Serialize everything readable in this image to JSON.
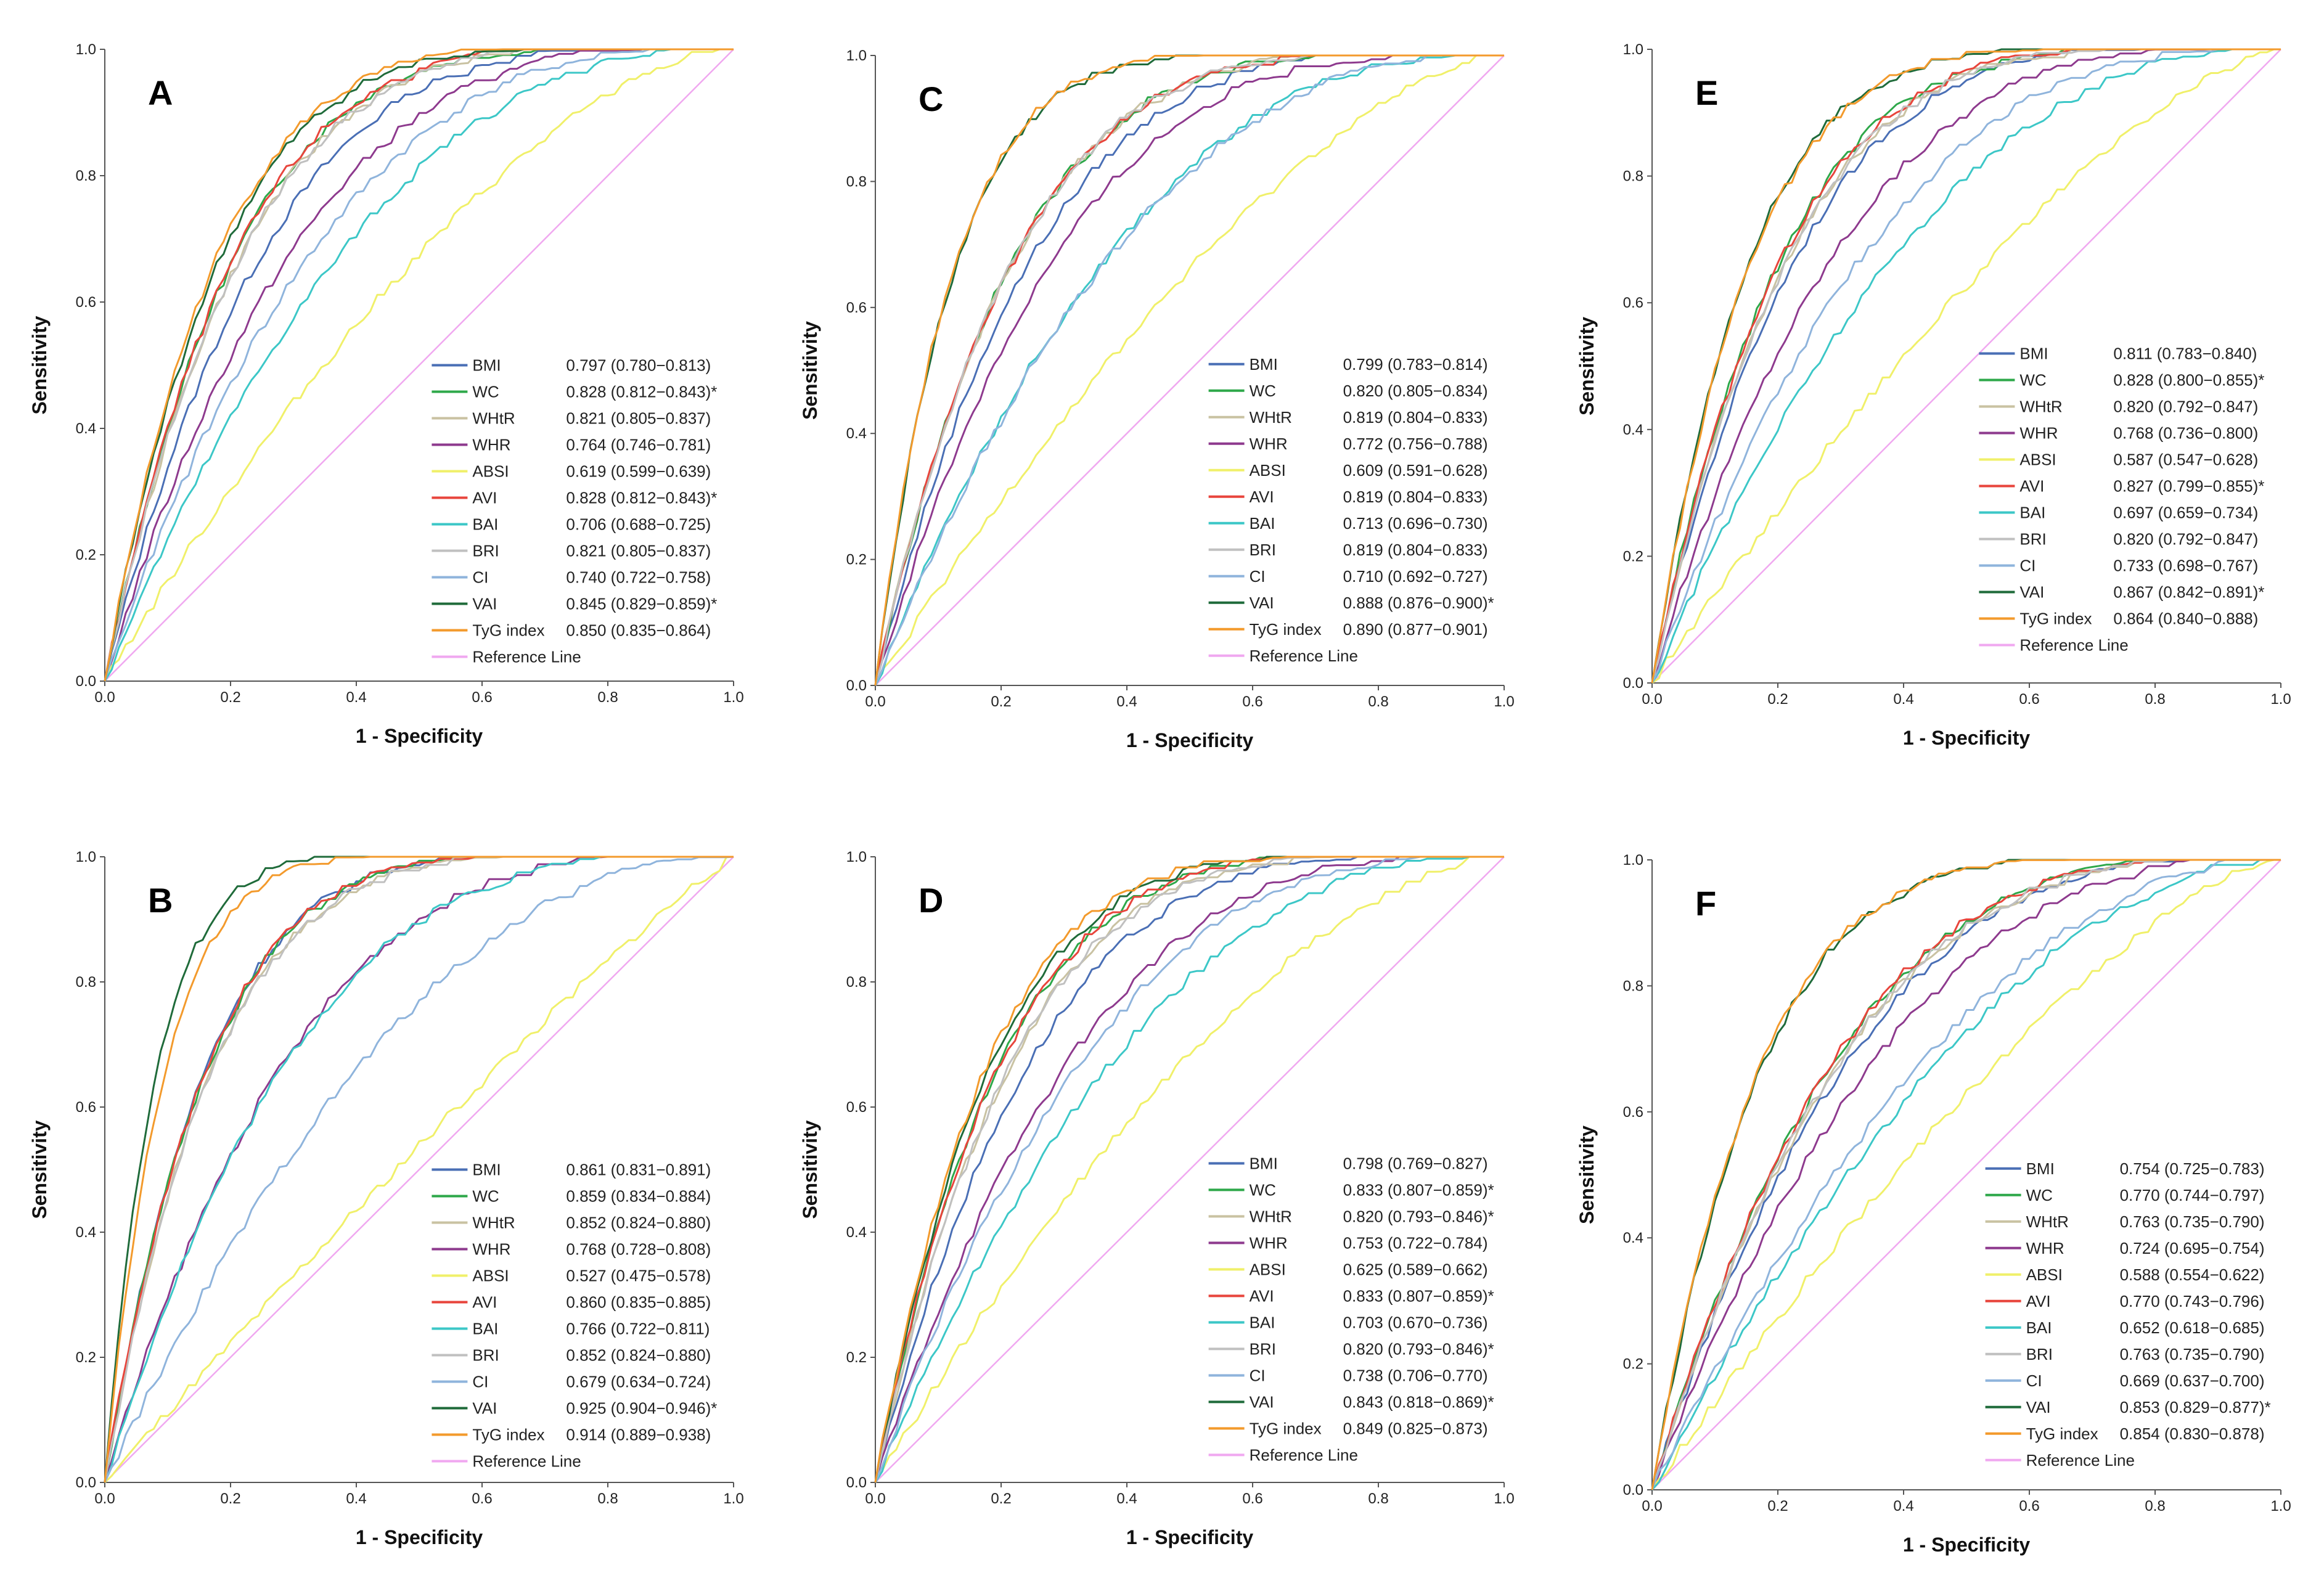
{
  "chart_data": [
    {
      "type": "line",
      "panel": "A",
      "xlabel": "1 - Specificity",
      "ylabel": "Sensitivity",
      "xlim": [
        0,
        1
      ],
      "ylim": [
        0,
        1
      ],
      "xticks": [
        "0.0",
        "0.2",
        "0.4",
        "0.6",
        "0.8",
        "1.0"
      ],
      "yticks": [
        "0.0",
        "0.2",
        "0.4",
        "0.6",
        "0.8",
        "1.0"
      ],
      "series": [
        {
          "name": "BMI",
          "color": "#4a6fb5",
          "auc": "0.797 (0.780−0.813)"
        },
        {
          "name": "WC",
          "color": "#2ea84a",
          "auc": "0.828 (0.812−0.843)*"
        },
        {
          "name": "WHtR",
          "color": "#c9c2a2",
          "auc": "0.821 (0.805−0.837)"
        },
        {
          "name": "WHR",
          "color": "#8e3a8e",
          "auc": "0.764 (0.746−0.781)"
        },
        {
          "name": "ABSI",
          "color": "#f0f06a",
          "auc": "0.619 (0.599−0.639)"
        },
        {
          "name": "AVI",
          "color": "#e8453c",
          "auc": "0.828 (0.812−0.843)*"
        },
        {
          "name": "BAI",
          "color": "#3cc7c7",
          "auc": "0.706 (0.688−0.725)"
        },
        {
          "name": "BRI",
          "color": "#c0c0c0",
          "auc": "0.821 (0.805−0.837)"
        },
        {
          "name": "CI",
          "color": "#8fb4dc",
          "auc": "0.740 (0.722−0.758)"
        },
        {
          "name": "VAI",
          "color": "#1f6b3a",
          "auc": "0.845 (0.829−0.859)*"
        },
        {
          "name": "TyG index",
          "color": "#f39a2c",
          "auc": "0.850 (0.835−0.864)"
        }
      ],
      "reference": {
        "name": "Reference Line",
        "color": "#f0a8f0"
      }
    },
    {
      "type": "line",
      "panel": "B",
      "xlabel": "1 - Specificity",
      "ylabel": "Sensitivity",
      "xlim": [
        0,
        1
      ],
      "ylim": [
        0,
        1
      ],
      "xticks": [
        "0.0",
        "0.2",
        "0.4",
        "0.6",
        "0.8",
        "1.0"
      ],
      "yticks": [
        "0.0",
        "0.2",
        "0.4",
        "0.6",
        "0.8",
        "1.0"
      ],
      "series": [
        {
          "name": "BMI",
          "color": "#4a6fb5",
          "auc": "0.861 (0.831−0.891)"
        },
        {
          "name": "WC",
          "color": "#2ea84a",
          "auc": "0.859 (0.834−0.884)"
        },
        {
          "name": "WHtR",
          "color": "#c9c2a2",
          "auc": "0.852 (0.824−0.880)"
        },
        {
          "name": "WHR",
          "color": "#8e3a8e",
          "auc": "0.768 (0.728−0.808)"
        },
        {
          "name": "ABSI",
          "color": "#f0f06a",
          "auc": "0.527 (0.475−0.578)"
        },
        {
          "name": "AVI",
          "color": "#e8453c",
          "auc": "0.860 (0.835−0.885)"
        },
        {
          "name": "BAI",
          "color": "#3cc7c7",
          "auc": "0.766 (0.722−0.811)"
        },
        {
          "name": "BRI",
          "color": "#c0c0c0",
          "auc": "0.852 (0.824−0.880)"
        },
        {
          "name": "CI",
          "color": "#8fb4dc",
          "auc": "0.679 (0.634−0.724)"
        },
        {
          "name": "VAI",
          "color": "#1f6b3a",
          "auc": "0.925 (0.904−0.946)*"
        },
        {
          "name": "TyG index",
          "color": "#f39a2c",
          "auc": "0.914 (0.889−0.938)"
        }
      ],
      "reference": {
        "name": "Reference Line",
        "color": "#f0a8f0"
      }
    },
    {
      "type": "line",
      "panel": "C",
      "xlabel": "1 - Specificity",
      "ylabel": "Sensitivity",
      "xlim": [
        0,
        1
      ],
      "ylim": [
        0,
        1
      ],
      "xticks": [
        "0.0",
        "0.2",
        "0.4",
        "0.6",
        "0.8",
        "1.0"
      ],
      "yticks": [
        "0.0",
        "0.2",
        "0.4",
        "0.6",
        "0.8",
        "1.0"
      ],
      "series": [
        {
          "name": "BMI",
          "color": "#4a6fb5",
          "auc": "0.799 (0.783−0.814)"
        },
        {
          "name": "WC",
          "color": "#2ea84a",
          "auc": "0.820 (0.805−0.834)"
        },
        {
          "name": "WHtR",
          "color": "#c9c2a2",
          "auc": "0.819 (0.804−0.833)"
        },
        {
          "name": "WHR",
          "color": "#8e3a8e",
          "auc": "0.772 (0.756−0.788)"
        },
        {
          "name": "ABSI",
          "color": "#f0f06a",
          "auc": "0.609 (0.591−0.628)"
        },
        {
          "name": "AVI",
          "color": "#e8453c",
          "auc": "0.819 (0.804−0.833)"
        },
        {
          "name": "BAI",
          "color": "#3cc7c7",
          "auc": "0.713 (0.696−0.730)"
        },
        {
          "name": "BRI",
          "color": "#c0c0c0",
          "auc": "0.819 (0.804−0.833)"
        },
        {
          "name": "CI",
          "color": "#8fb4dc",
          "auc": "0.710 (0.692−0.727)"
        },
        {
          "name": "VAI",
          "color": "#1f6b3a",
          "auc": "0.888 (0.876−0.900)*"
        },
        {
          "name": "TyG index",
          "color": "#f39a2c",
          "auc": "0.890 (0.877−0.901)"
        }
      ],
      "reference": {
        "name": "Reference Line",
        "color": "#f0a8f0"
      }
    },
    {
      "type": "line",
      "panel": "D",
      "xlabel": "1 - Specificity",
      "ylabel": "Sensitivity",
      "xlim": [
        0,
        1
      ],
      "ylim": [
        0,
        1
      ],
      "xticks": [
        "0.0",
        "0.2",
        "0.4",
        "0.6",
        "0.8",
        "1.0"
      ],
      "yticks": [
        "0.0",
        "0.2",
        "0.4",
        "0.6",
        "0.8",
        "1.0"
      ],
      "series": [
        {
          "name": "BMI",
          "color": "#4a6fb5",
          "auc": "0.798 (0.769−0.827)"
        },
        {
          "name": "WC",
          "color": "#2ea84a",
          "auc": "0.833 (0.807−0.859)*"
        },
        {
          "name": "WHtR",
          "color": "#c9c2a2",
          "auc": "0.820 (0.793−0.846)*"
        },
        {
          "name": "WHR",
          "color": "#8e3a8e",
          "auc": "0.753 (0.722−0.784)"
        },
        {
          "name": "ABSI",
          "color": "#f0f06a",
          "auc": "0.625 (0.589−0.662)"
        },
        {
          "name": "AVI",
          "color": "#e8453c",
          "auc": "0.833 (0.807−0.859)*"
        },
        {
          "name": "BAI",
          "color": "#3cc7c7",
          "auc": "0.703 (0.670−0.736)"
        },
        {
          "name": "BRI",
          "color": "#c0c0c0",
          "auc": "0.820 (0.793−0.846)*"
        },
        {
          "name": "CI",
          "color": "#8fb4dc",
          "auc": "0.738 (0.706−0.770)"
        },
        {
          "name": "VAI",
          "color": "#1f6b3a",
          "auc": "0.843 (0.818−0.869)*"
        },
        {
          "name": "TyG index",
          "color": "#f39a2c",
          "auc": "0.849 (0.825−0.873)"
        }
      ],
      "reference": {
        "name": "Reference Line",
        "color": "#f0a8f0"
      }
    },
    {
      "type": "line",
      "panel": "E",
      "xlabel": "1 - Specificity",
      "ylabel": "Sensitivity",
      "xlim": [
        0,
        1
      ],
      "ylim": [
        0,
        1
      ],
      "xticks": [
        "0.0",
        "0.2",
        "0.4",
        "0.6",
        "0.8",
        "1.0"
      ],
      "yticks": [
        "0.0",
        "0.2",
        "0.4",
        "0.6",
        "0.8",
        "1.0"
      ],
      "series": [
        {
          "name": "BMI",
          "color": "#4a6fb5",
          "auc": "0.811 (0.783−0.840)"
        },
        {
          "name": "WC",
          "color": "#2ea84a",
          "auc": "0.828 (0.800−0.855)*"
        },
        {
          "name": "WHtR",
          "color": "#c9c2a2",
          "auc": "0.820 (0.792−0.847)"
        },
        {
          "name": "WHR",
          "color": "#8e3a8e",
          "auc": "0.768 (0.736−0.800)"
        },
        {
          "name": "ABSI",
          "color": "#f0f06a",
          "auc": "0.587 (0.547−0.628)"
        },
        {
          "name": "AVI",
          "color": "#e8453c",
          "auc": "0.827 (0.799−0.855)*"
        },
        {
          "name": "BAI",
          "color": "#3cc7c7",
          "auc": "0.697 (0.659−0.734)"
        },
        {
          "name": "BRI",
          "color": "#c0c0c0",
          "auc": "0.820 (0.792−0.847)"
        },
        {
          "name": "CI",
          "color": "#8fb4dc",
          "auc": "0.733 (0.698−0.767)"
        },
        {
          "name": "VAI",
          "color": "#1f6b3a",
          "auc": "0.867 (0.842−0.891)*"
        },
        {
          "name": "TyG index",
          "color": "#f39a2c",
          "auc": "0.864 (0.840−0.888)"
        }
      ],
      "reference": {
        "name": "Reference Line",
        "color": "#f0a8f0"
      }
    },
    {
      "type": "line",
      "panel": "F",
      "xlabel": "1 - Specificity",
      "ylabel": "Sensitivity",
      "xlim": [
        0,
        1
      ],
      "ylim": [
        0,
        1
      ],
      "xticks": [
        "0.0",
        "0.2",
        "0.4",
        "0.6",
        "0.8",
        "1.0"
      ],
      "yticks": [
        "0.0",
        "0.2",
        "0.4",
        "0.6",
        "0.8",
        "1.0"
      ],
      "series": [
        {
          "name": "BMI",
          "color": "#4a6fb5",
          "auc": "0.754 (0.725−0.783)"
        },
        {
          "name": "WC",
          "color": "#2ea84a",
          "auc": "0.770 (0.744−0.797)"
        },
        {
          "name": "WHtR",
          "color": "#c9c2a2",
          "auc": "0.763 (0.735−0.790)"
        },
        {
          "name": "WHR",
          "color": "#8e3a8e",
          "auc": "0.724 (0.695−0.754)"
        },
        {
          "name": "ABSI",
          "color": "#f0f06a",
          "auc": "0.588 (0.554−0.622)"
        },
        {
          "name": "AVI",
          "color": "#e8453c",
          "auc": "0.770 (0.743−0.796)"
        },
        {
          "name": "BAI",
          "color": "#3cc7c7",
          "auc": "0.652 (0.618−0.685)"
        },
        {
          "name": "BRI",
          "color": "#c0c0c0",
          "auc": "0.763 (0.735−0.790)"
        },
        {
          "name": "CI",
          "color": "#8fb4dc",
          "auc": "0.669 (0.637−0.700)"
        },
        {
          "name": "VAI",
          "color": "#1f6b3a",
          "auc": "0.853 (0.829−0.877)*"
        },
        {
          "name": "TyG index",
          "color": "#f39a2c",
          "auc": "0.854 (0.830−0.878)"
        }
      ],
      "reference": {
        "name": "Reference Line",
        "color": "#f0a8f0"
      }
    }
  ]
}
